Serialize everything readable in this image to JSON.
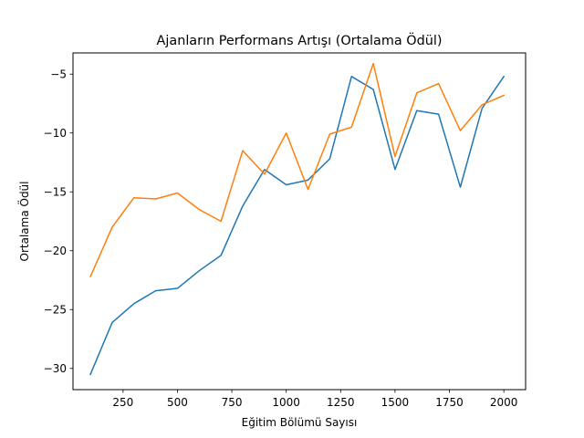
{
  "chart_data": {
    "type": "line",
    "title": "Ajanların Performans Artışı (Ortalama Ödül)",
    "xlabel": "Eğitim Bölümü Sayısı",
    "ylabel": "Ortalama Ödül",
    "xlim": [
      20,
      2100
    ],
    "ylim": [
      -31.8,
      -3.2
    ],
    "grid": false,
    "x": [
      100,
      200,
      300,
      400,
      500,
      600,
      700,
      800,
      900,
      1000,
      1100,
      1200,
      1300,
      1400,
      1500,
      1600,
      1700,
      1800,
      1900,
      2000
    ],
    "xticks": [
      250,
      500,
      750,
      1000,
      1250,
      1500,
      1750,
      2000
    ],
    "xtick_labels": [
      "250",
      "500",
      "750",
      "1000",
      "1250",
      "1500",
      "1750",
      "2000"
    ],
    "yticks": [
      -30,
      -25,
      -20,
      -15,
      -10,
      -5
    ],
    "ytick_labels": [
      "−30",
      "−25",
      "−20",
      "−15",
      "−10",
      "−5"
    ],
    "series": [
      {
        "color": "#1f77b4",
        "values": [
          -30.5,
          -26.1,
          -24.5,
          -23.4,
          -23.2,
          -21.7,
          -20.4,
          -16.2,
          -13.1,
          -14.4,
          -14.0,
          -12.2,
          -5.2,
          -6.3,
          -13.1,
          -8.1,
          -8.4,
          -14.6,
          -7.9,
          -5.2
        ]
      },
      {
        "color": "#ff7f0e",
        "values": [
          -22.2,
          -18.0,
          -15.5,
          -15.6,
          -15.1,
          -16.5,
          -17.5,
          -11.5,
          -13.5,
          -10.0,
          -14.8,
          -10.1,
          -9.5,
          -4.1,
          -12.0,
          -6.6,
          -5.8,
          -9.8,
          -7.6,
          -6.8
        ]
      }
    ]
  }
}
